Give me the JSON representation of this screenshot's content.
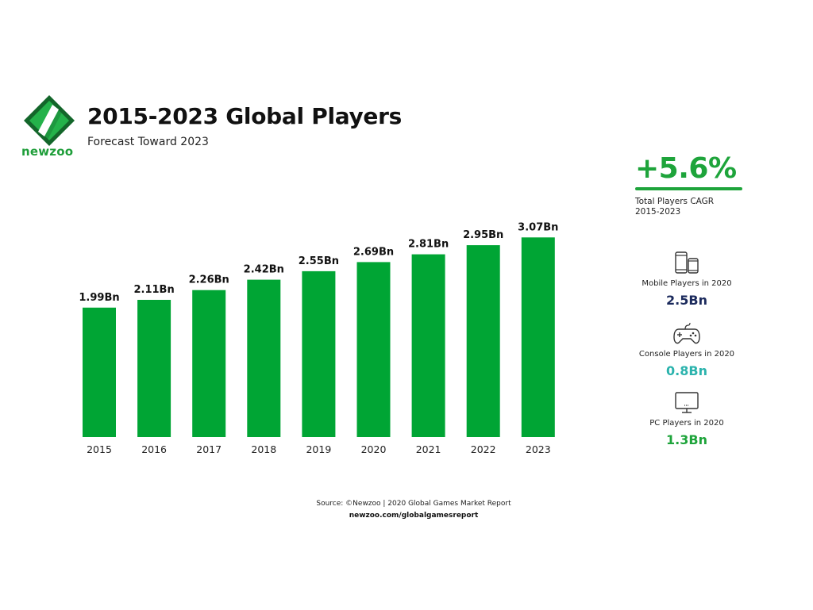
{
  "brand": {
    "name": "newzoo",
    "color": "#1f9e3a",
    "dark_color": "#13662a"
  },
  "header": {
    "title": "2015-2023 Global Players",
    "subtitle": "Forecast Toward 2023"
  },
  "chart_data": {
    "type": "bar",
    "title": "2015-2023 Global Players",
    "subtitle": "Forecast Toward 2023",
    "categories": [
      "2015",
      "2016",
      "2017",
      "2018",
      "2019",
      "2020",
      "2021",
      "2022",
      "2023"
    ],
    "values": [
      1.99,
      2.11,
      2.26,
      2.42,
      2.55,
      2.69,
      2.81,
      2.95,
      3.07
    ],
    "data_labels": [
      "1.99Bn",
      "2.11Bn",
      "2.26Bn",
      "2.42Bn",
      "2.55Bn",
      "2.69Bn",
      "2.81Bn",
      "2.95Bn",
      "3.07Bn"
    ],
    "unit": "Bn",
    "bar_color": "#00a534",
    "xlabel": "",
    "ylabel": "",
    "grid": false,
    "legend": "none",
    "yaxis_visible": false
  },
  "sidebar": {
    "cagr": {
      "value": "+5.6%",
      "label_line1": "Total Players CAGR",
      "label_line2": "2015-2023",
      "color": "#1ea43b"
    },
    "stats": [
      {
        "icon": "mobile-devices-icon",
        "label": "Mobile Players in 2020",
        "value": "2.5Bn",
        "color": "#1b2a5c"
      },
      {
        "icon": "gamepad-icon",
        "label": "Console Players in 2020",
        "value": "0.8Bn",
        "color": "#2bb3ad"
      },
      {
        "icon": "pc-monitor-icon",
        "label": "PC Players in 2020",
        "value": "1.3Bn",
        "color": "#1ea43b"
      }
    ]
  },
  "footer": {
    "source": "Source: ©Newzoo | 2020 Global Games Market Report",
    "url": "newzoo.com/globalgamesreport"
  }
}
